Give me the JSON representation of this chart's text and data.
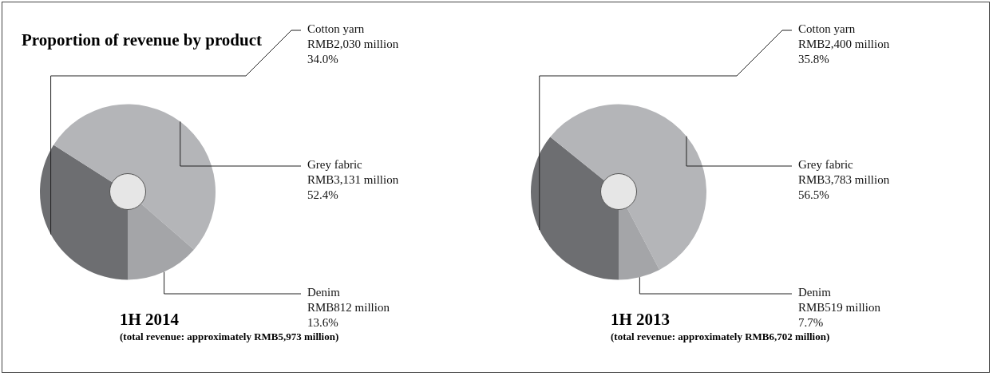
{
  "chart_data": [
    {
      "type": "donut",
      "title": "Proportion of revenue by product",
      "subtitle": "1H 2014",
      "annotations": [
        "(total revenue: approximately RMB5,973 million)"
      ],
      "categories": [
        "Cotton yarn",
        "Grey fabric",
        "Denim"
      ],
      "values": [
        34.0,
        52.4,
        13.6
      ],
      "value_labels": [
        "RMB2,030 million\n34.0%",
        "RMB3,131 million\n52.4%",
        "RMB812 million\n13.6%"
      ],
      "colors": [
        "#6d6e71",
        "#b4b5b8",
        "#a4a5a8"
      ],
      "legend": false
    },
    {
      "type": "donut",
      "subtitle": "1H 2013",
      "annotations": [
        "(total revenue:  approximately RMB6,702 million)"
      ],
      "categories": [
        "Cotton yarn",
        "Grey fabric",
        "Denim"
      ],
      "values": [
        35.8,
        56.5,
        7.7
      ],
      "value_labels": [
        "RMB2,400 million\n35.8%",
        "RMB3,783 million\n56.5%",
        "RMB519 million\n7.7%"
      ],
      "colors": [
        "#6d6e71",
        "#b4b5b8",
        "#a4a5a8"
      ],
      "legend": false
    }
  ]
}
